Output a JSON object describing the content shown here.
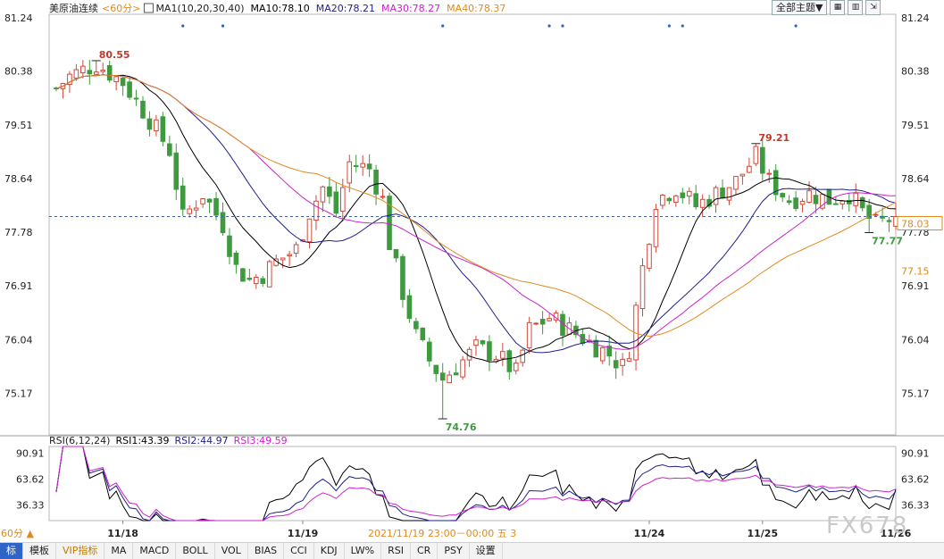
{
  "header": {
    "symbol": "美原油连续",
    "period": "<60分>",
    "ma_label": "MA1(10,20,30,40)",
    "ma10": "MA10:78.10",
    "ma20": "MA20:78.21",
    "ma30": "MA30:78.27",
    "ma40": "MA40:78.37",
    "theme_label": "全部主题▼"
  },
  "rsi_header": {
    "label": "RSI(6,12,24)",
    "rsi1": "RSI1:43.39",
    "rsi2": "RSI2:44.97",
    "rsi3": "RSI3:49.59"
  },
  "toolbar": {
    "items": [
      "标",
      "模板",
      "VIP指标",
      "MA",
      "MACD",
      "BOLL",
      "VOL",
      "BIAS",
      "CCI",
      "KDJ",
      "LW%",
      "RSI",
      "CR",
      "PSY",
      "设置"
    ]
  },
  "footer": {
    "period_flag": "60分 ▲",
    "crosshair_time": "2021/11/19 23:00－00:00 五 3"
  },
  "watermark": "FX678",
  "colors": {
    "up": "#d04a3a",
    "down": "#3f9a3f",
    "ma10": "#000000",
    "ma20": "#1f1f8f",
    "ma30": "#cc22cc",
    "ma40": "#e08a1e",
    "rsi1": "#000000",
    "rsi2": "#1f1f8f",
    "rsi3": "#cc22cc"
  },
  "chart_data": [
    {
      "type": "candlestick",
      "title": "美原油连续",
      "y_ticks": [
        "81.24",
        "80.38",
        "79.51",
        "78.64",
        "77.78",
        "76.91",
        "76.04",
        "75.17"
      ],
      "y_range": [
        74.5,
        81.3
      ],
      "x_ticks": [
        "11/18",
        "11/19",
        "11/24",
        "11/25",
        "11/26"
      ],
      "annotations": [
        {
          "text": "80.55",
          "value": 80.55,
          "kind": "high",
          "bar": 6
        },
        {
          "text": "74.76",
          "value": 74.76,
          "kind": "low",
          "bar": 58
        },
        {
          "text": "79.21",
          "value": 79.21,
          "kind": "high",
          "bar": 105
        },
        {
          "text": "77.77",
          "value": 77.77,
          "kind": "low",
          "bar": 122
        }
      ],
      "price_labels": [
        {
          "text": "78.03",
          "value": 78.03,
          "kind": "current"
        },
        {
          "text": "77.15",
          "value": 77.15,
          "kind": "reference"
        }
      ],
      "current_price": 78.03,
      "keypoints": [
        [
          0,
          80.1
        ],
        [
          2,
          80.3
        ],
        [
          6,
          80.5
        ],
        [
          10,
          80.2
        ],
        [
          14,
          79.6
        ],
        [
          17,
          79.1
        ],
        [
          19,
          78.0
        ],
        [
          22,
          78.4
        ],
        [
          25,
          77.9
        ],
        [
          27,
          77.2
        ],
        [
          29,
          77.0
        ],
        [
          31,
          77.1
        ],
        [
          33,
          77.3
        ],
        [
          36,
          77.5
        ],
        [
          38,
          78.1
        ],
        [
          40,
          78.5
        ],
        [
          42,
          78.1
        ],
        [
          44,
          78.9
        ],
        [
          47,
          78.8
        ],
        [
          49,
          78.3
        ],
        [
          50,
          77.6
        ],
        [
          52,
          76.8
        ],
        [
          54,
          76.1
        ],
        [
          56,
          75.7
        ],
        [
          58,
          75.4
        ],
        [
          60,
          75.6
        ],
        [
          63,
          75.9
        ],
        [
          66,
          75.8
        ],
        [
          69,
          75.5
        ],
        [
          71,
          76.2
        ],
        [
          74,
          76.4
        ],
        [
          77,
          76.2
        ],
        [
          80,
          76.0
        ],
        [
          83,
          75.8
        ],
        [
          85,
          75.6
        ],
        [
          86,
          75.9
        ],
        [
          88,
          77.2
        ],
        [
          90,
          78.3
        ],
        [
          93,
          78.5
        ],
        [
          96,
          78.2
        ],
        [
          99,
          78.4
        ],
        [
          102,
          78.6
        ],
        [
          105,
          79.0
        ],
        [
          107,
          78.6
        ],
        [
          110,
          78.3
        ],
        [
          113,
          78.4
        ],
        [
          116,
          78.3
        ],
        [
          119,
          78.4
        ],
        [
          121,
          78.1
        ],
        [
          123,
          77.9
        ],
        [
          126,
          78.03
        ]
      ],
      "series": [
        {
          "name": "MA10",
          "value": 78.1
        },
        {
          "name": "MA20",
          "value": 78.21
        },
        {
          "name": "MA30",
          "value": 78.27
        },
        {
          "name": "MA40",
          "value": 78.37
        }
      ]
    },
    {
      "type": "line",
      "title": "RSI(6,12,24)",
      "y_ticks": [
        "90.91",
        "63.62",
        "36.33"
      ],
      "y_range": [
        20,
        98
      ],
      "series": [
        {
          "name": "RSI1",
          "value": 43.39
        },
        {
          "name": "RSI2",
          "value": 44.97
        },
        {
          "name": "RSI3",
          "value": 49.59
        }
      ]
    }
  ]
}
